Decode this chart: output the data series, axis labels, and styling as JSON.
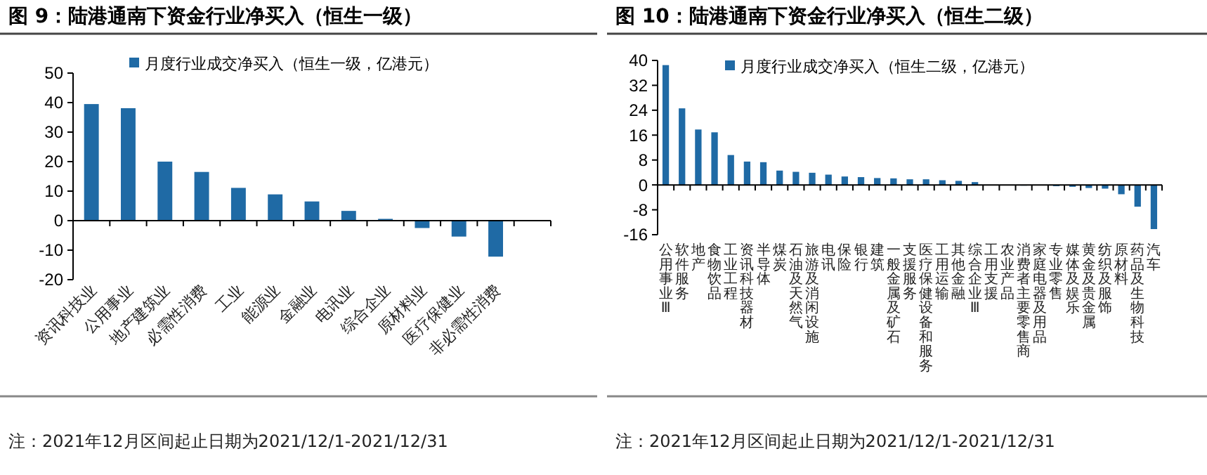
{
  "chart_data": [
    {
      "type": "bar",
      "title": "图 9：陆港通南下资金行业净买入（恒生一级）",
      "categories": [
        "资讯科技业",
        "公用事业",
        "地产建筑业",
        "必需性消费",
        "工业",
        "能源业",
        "金融业",
        "电讯业",
        "综合企业",
        "原材料业",
        "医疗保健业",
        "非必需性消费",
        null
      ],
      "series": [
        {
          "name": "月度行业成交净买入（恒生一级，亿港元）",
          "color": "#1f6aa5",
          "values": [
            39.5,
            38.1,
            20.0,
            16.5,
            11.1,
            8.9,
            6.5,
            3.3,
            0.6,
            -2.5,
            -5.4,
            -12.2,
            null
          ]
        }
      ],
      "ylim": [
        -20,
        50
      ],
      "yticks": [
        -20,
        -10,
        0,
        10,
        20,
        30,
        40,
        50
      ],
      "legend": "top",
      "annotations": [
        "注：2021年12月区间起止日期为2021/12/1-2021/12/31"
      ]
    },
    {
      "type": "bar",
      "title": "图 10：陆港通南下资金行业净买入（恒生二级）",
      "categories": [
        "公用事业Ⅲ",
        "软件服务",
        "地产",
        "食物饮品",
        "工业工程",
        "资讯科技器材",
        "半导体",
        "煤炭",
        "石油及天然气",
        "旅游及消闲设施",
        "电讯",
        "保险",
        "银行",
        "建筑",
        "一般金属及矿石",
        "支援服务",
        "医疗保健设备和服务",
        "工用运输",
        "其他金融",
        "综合企业Ⅲ",
        "工用支援",
        "农业产品",
        "消费者主要零售商",
        "家庭电器及用品",
        "专业零售",
        "媒体及娱乐",
        "黄金及贵金属",
        "纺织及服饰",
        "原材料",
        "药品及生物科技",
        "汽车"
      ],
      "series": [
        {
          "name": "月度行业成交净买入（恒生二级，亿港元）",
          "color": "#1f6aa5",
          "values": [
            38.5,
            24.6,
            17.8,
            16.9,
            9.6,
            7.5,
            7.3,
            4.6,
            4.2,
            3.9,
            3.3,
            2.7,
            2.5,
            2.2,
            2.1,
            1.8,
            1.8,
            1.5,
            1.3,
            0.9,
            null,
            null,
            0,
            null,
            -0.4,
            -0.6,
            -1.0,
            -1.2,
            -3.0,
            -7.0,
            -14.2
          ]
        }
      ],
      "ylim": [
        -16,
        40
      ],
      "yticks": [
        -16,
        -8,
        0,
        8,
        16,
        24,
        32,
        40
      ],
      "legend": "top",
      "annotations": [
        "注：2021年12月区间起止日期为2021/12/1-2021/12/31"
      ]
    }
  ]
}
